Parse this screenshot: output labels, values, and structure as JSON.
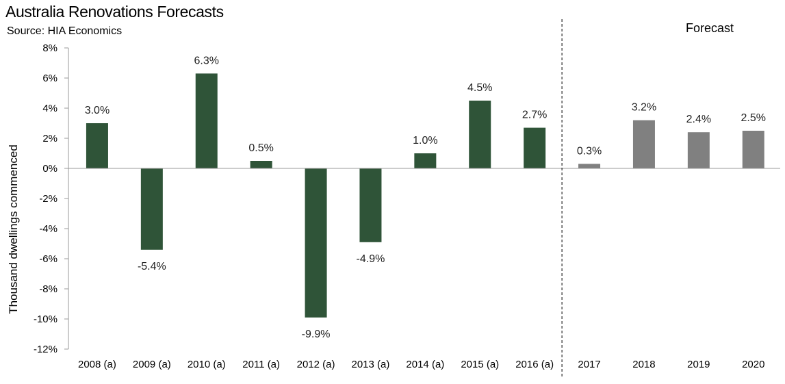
{
  "chart_data": {
    "type": "bar",
    "title": "Australia Renovations Forecasts",
    "subtitle": "Source: HIA Economics",
    "ylabel": "Thousand dwellings commenced",
    "xlabel": "",
    "ylim": [
      -12,
      8
    ],
    "y_ticks": [
      8,
      6,
      4,
      2,
      0,
      -2,
      -4,
      -6,
      -8,
      -10,
      -12
    ],
    "y_tick_labels": [
      "8%",
      "6%",
      "4%",
      "2%",
      "0%",
      "-2%",
      "-4%",
      "-6%",
      "-8%",
      "-10%",
      "-12%"
    ],
    "categories": [
      "2008 (a)",
      "2009 (a)",
      "2010 (a)",
      "2011 (a)",
      "2012 (a)",
      "2013 (a)",
      "2014 (a)",
      "2015 (a)",
      "2016 (a)",
      "2017",
      "2018",
      "2019",
      "2020"
    ],
    "values": [
      3.0,
      -5.4,
      6.3,
      0.5,
      -9.9,
      -4.9,
      1.0,
      4.5,
      2.7,
      0.3,
      3.2,
      2.4,
      2.5
    ],
    "value_labels": [
      "3.0%",
      "-5.4%",
      "6.3%",
      "0.5%",
      "-9.9%",
      "-4.9%",
      "1.0%",
      "4.5%",
      "2.7%",
      "0.3%",
      "3.2%",
      "2.4%",
      "2.5%"
    ],
    "forecast_label": "Forecast",
    "forecast_start_index": 9,
    "colors": {
      "actual": "#2f5438",
      "forecast": "#808080"
    },
    "grid": false
  }
}
